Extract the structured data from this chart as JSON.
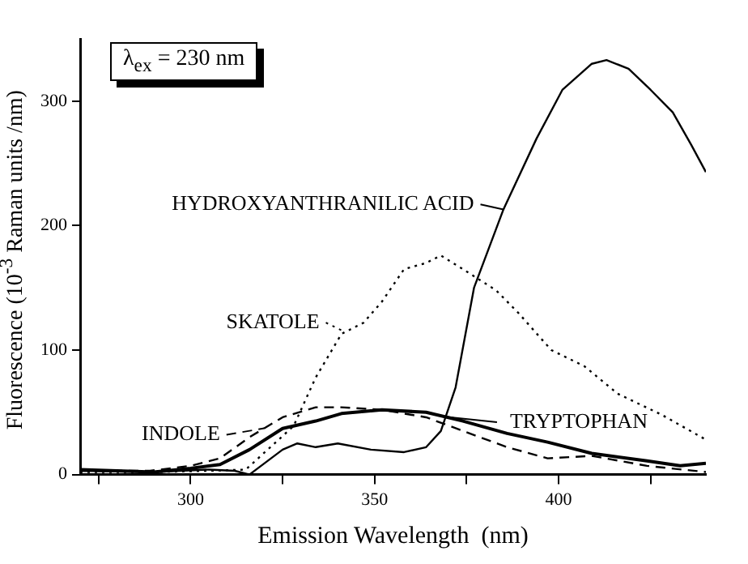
{
  "chart_data": {
    "type": "line",
    "xlabel": "Emission Wavelength  (nm)",
    "ylabel": "Fluorescence  (10$^{-3}$ Raman units /nm)",
    "xlim": [
      270,
      440
    ],
    "xticks": [
      {
        "value": 275,
        "label": null
      },
      300,
      {
        "value": 325,
        "label": null
      },
      350,
      {
        "value": 375,
        "label": null
      },
      400,
      {
        "value": 425,
        "label": null
      }
    ],
    "ylim": [
      0,
      350
    ],
    "yticks": [
      0,
      100,
      200,
      300
    ],
    "grid": false,
    "legend": "left",
    "marker": "none",
    "annotations": [
      "λ$_{ex}$ = 230 nm"
    ],
    "series": [
      {
        "name": "HYDROXYANTHRANILIC ACID",
        "color": "#000000",
        "line_style": "solid",
        "x": [
          270,
          290,
          305,
          312,
          316,
          325,
          329,
          334,
          340,
          349,
          358,
          364,
          368,
          372,
          377,
          385,
          394,
          401,
          409,
          413,
          419,
          425,
          431,
          436,
          440
        ],
        "values": [
          3,
          2,
          4,
          3,
          0,
          20,
          25,
          22,
          25,
          20,
          18,
          22,
          35,
          70,
          150,
          213,
          270,
          309,
          330,
          333,
          326,
          309,
          291,
          265,
          243
        ]
      },
      {
        "name": "SKATOLE",
        "color": "#000000",
        "line_style": "dotted",
        "x": [
          270,
          290,
          305,
          315,
          328,
          334,
          341,
          347,
          352,
          358,
          364,
          368,
          374,
          383,
          389,
          398,
          407,
          416,
          428,
          440
        ],
        "values": [
          2,
          2,
          3,
          4,
          39,
          78,
          113,
          122,
          139,
          165,
          170,
          176,
          165,
          148,
          130,
          100,
          87,
          65,
          48,
          28
        ]
      },
      {
        "name": "INDOLE",
        "color": "#000000",
        "line_style": "dashed",
        "x": [
          270,
          289,
          300,
          308,
          316,
          325,
          334,
          341,
          352,
          364,
          374,
          386,
          397,
          409,
          424,
          440
        ],
        "values": [
          3,
          3,
          7,
          13,
          30,
          46,
          54,
          54,
          52,
          46,
          35,
          22,
          13,
          15,
          7,
          2
        ]
      },
      {
        "name": "TRYPTOPHAN",
        "color": "#000000",
        "line_style": "solid",
        "x": [
          270,
          290,
          300,
          308,
          316,
          325,
          334,
          341,
          352,
          364,
          374,
          386,
          397,
          409,
          424,
          433,
          440
        ],
        "values": [
          4,
          2,
          5,
          8,
          20,
          37,
          43,
          49,
          52,
          50,
          43,
          33,
          26,
          17,
          11,
          7,
          9
        ]
      }
    ]
  }
}
